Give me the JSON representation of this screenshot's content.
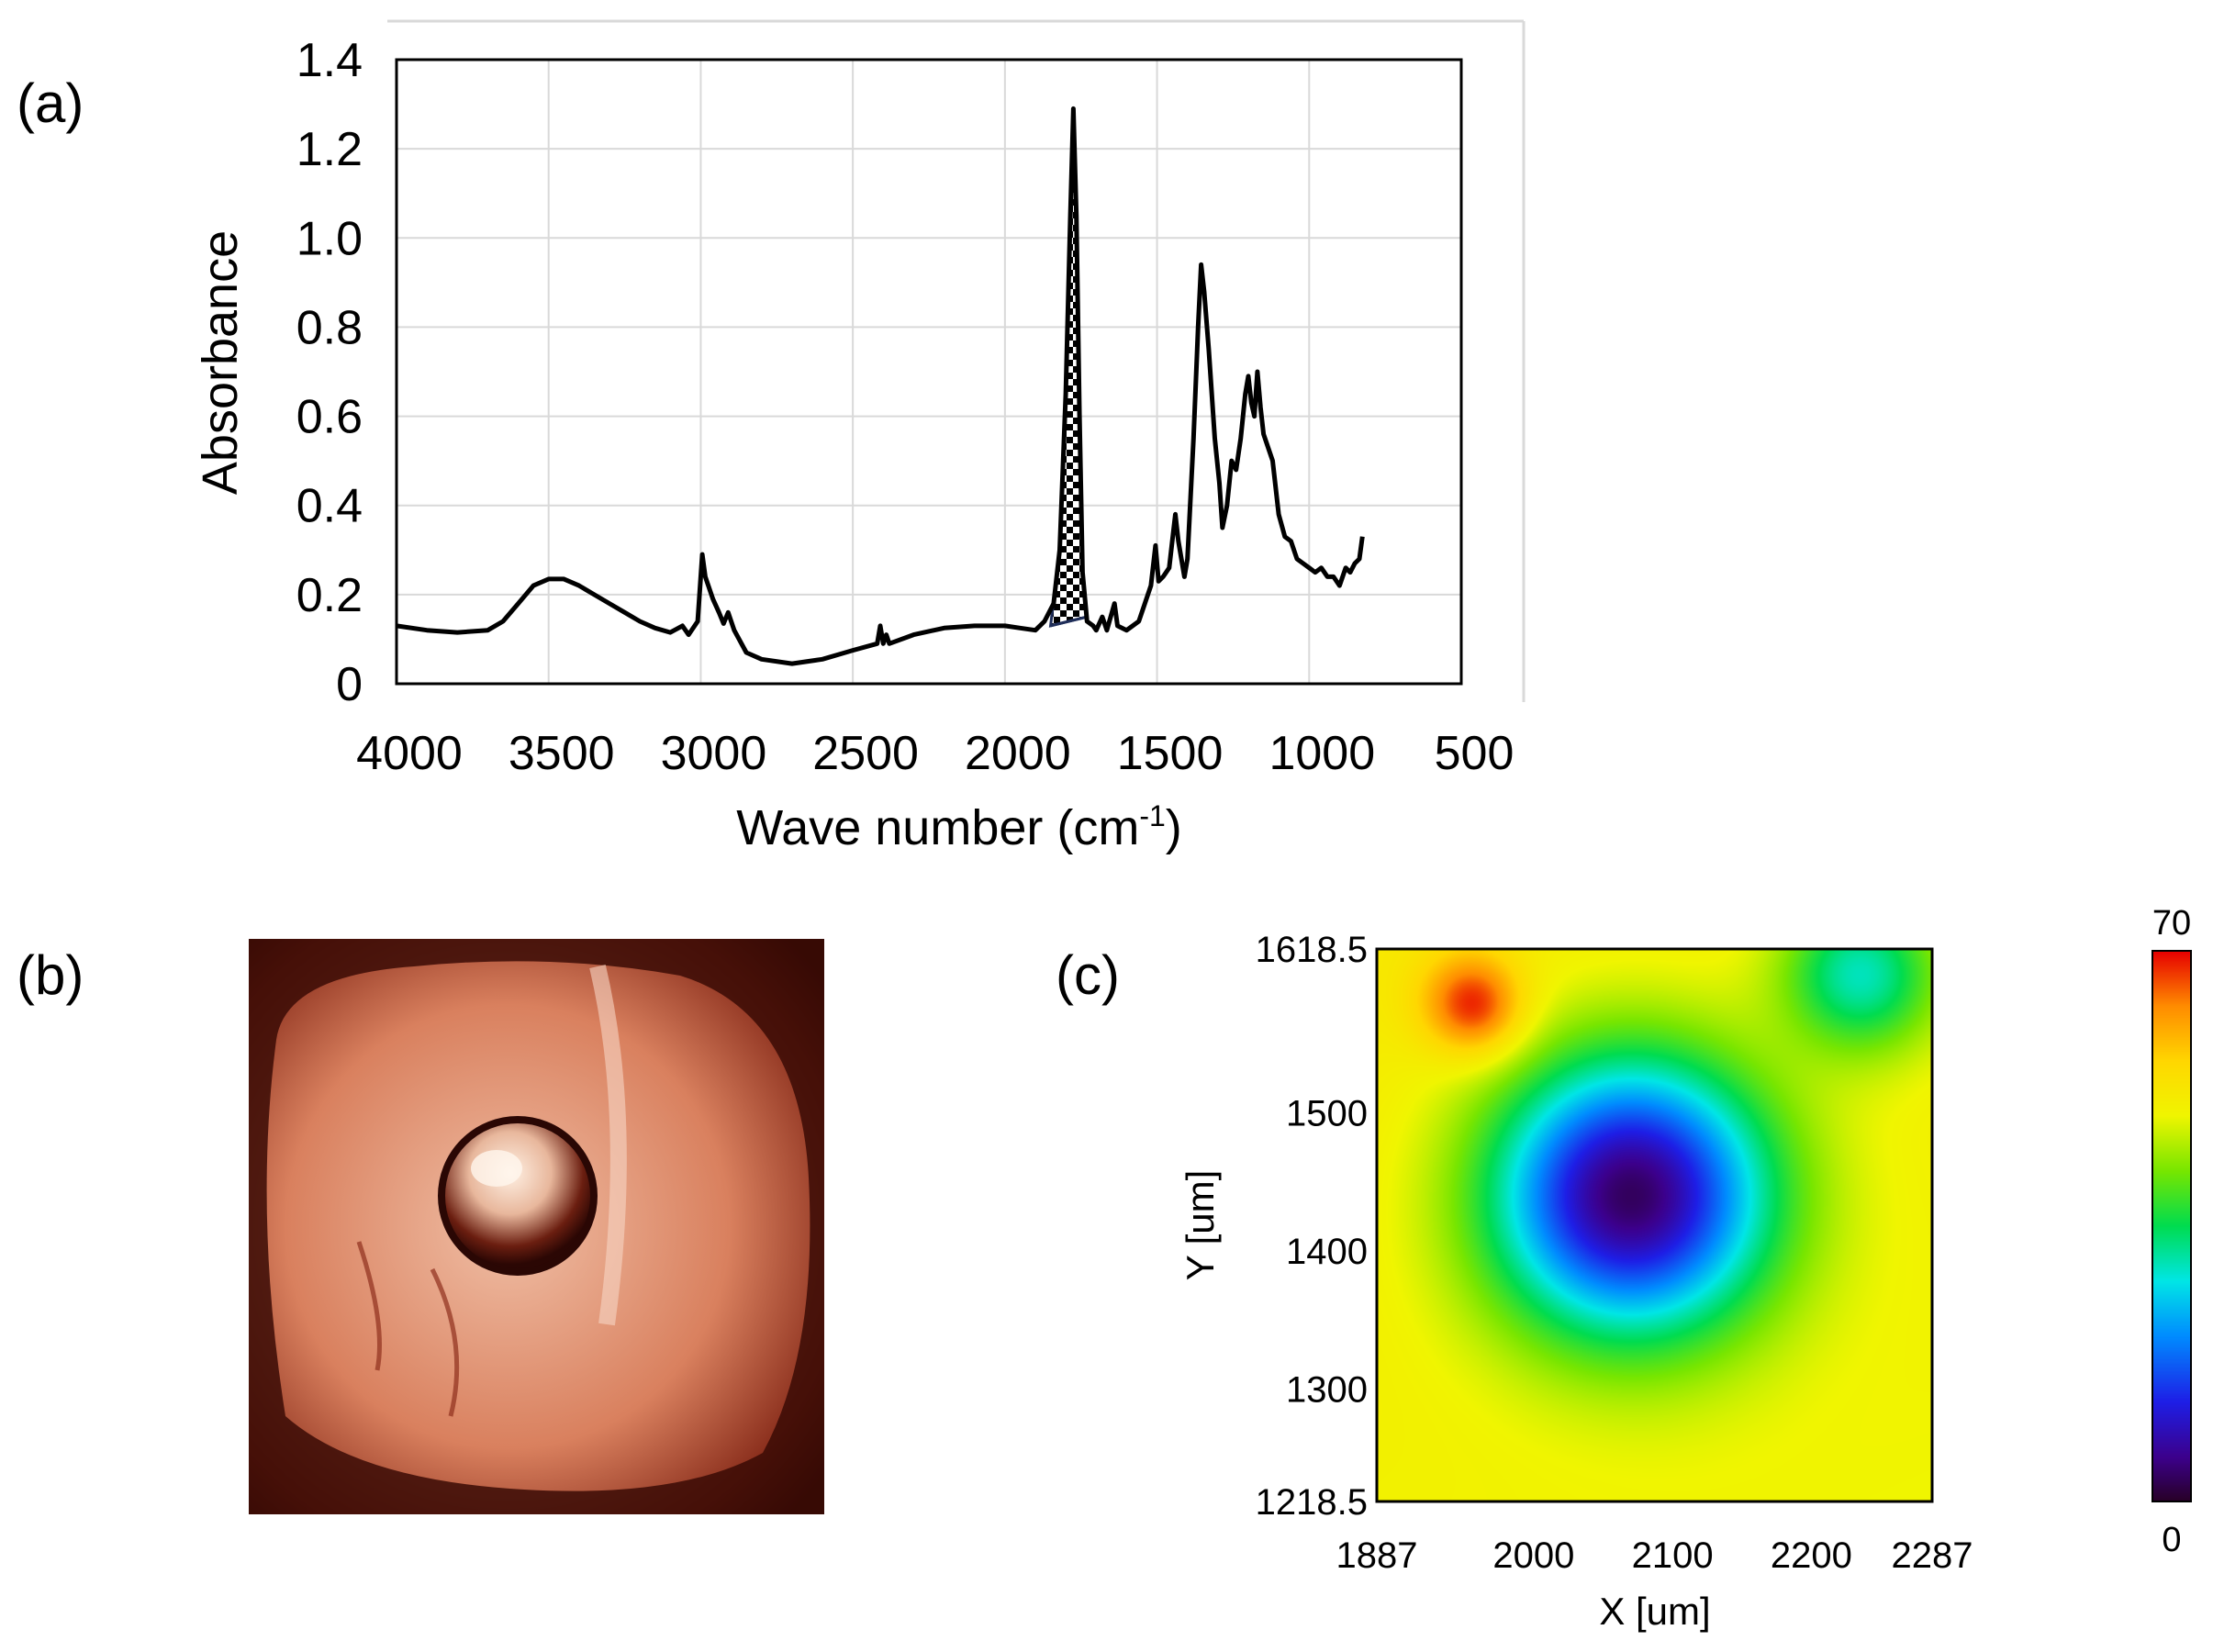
{
  "panels": {
    "a": "(a)",
    "b": "(b)",
    "c": "(c)"
  },
  "chart_data": [
    {
      "type": "line",
      "panel": "(a)",
      "title": "",
      "xlabel": "Wave number (cm",
      "xlabel_sup": "-1",
      "xlabel_end": ")",
      "ylabel": "Absorbance",
      "xlim": [
        4000,
        500
      ],
      "ylim": [
        0,
        1.4
      ],
      "xticks": [
        "4000",
        "3500",
        "3000",
        "2500",
        "2000",
        "1500",
        "1000",
        "500"
      ],
      "xtick_values": [
        4000,
        3500,
        3000,
        2500,
        2000,
        1500,
        1000,
        500
      ],
      "yticks": [
        "0",
        "0.2",
        "0.4",
        "0.6",
        "0.8",
        "1.0",
        "1.2",
        "1.4"
      ],
      "ytick_values": [
        0,
        0.2,
        0.4,
        0.6,
        0.8,
        1.0,
        1.2,
        1.4
      ],
      "grid": true,
      "series": [
        {
          "name": "spectrum",
          "color": "#000000",
          "points": [
            [
              4000,
              0.13
            ],
            [
              3900,
              0.12
            ],
            [
              3800,
              0.115
            ],
            [
              3700,
              0.12
            ],
            [
              3650,
              0.14
            ],
            [
              3600,
              0.18
            ],
            [
              3550,
              0.22
            ],
            [
              3500,
              0.235
            ],
            [
              3450,
              0.235
            ],
            [
              3400,
              0.22
            ],
            [
              3350,
              0.2
            ],
            [
              3300,
              0.18
            ],
            [
              3250,
              0.16
            ],
            [
              3200,
              0.14
            ],
            [
              3150,
              0.125
            ],
            [
              3100,
              0.115
            ],
            [
              3060,
              0.13
            ],
            [
              3040,
              0.11
            ],
            [
              3010,
              0.14
            ],
            [
              2995,
              0.29
            ],
            [
              2985,
              0.24
            ],
            [
              2960,
              0.19
            ],
            [
              2940,
              0.16
            ],
            [
              2925,
              0.135
            ],
            [
              2910,
              0.16
            ],
            [
              2890,
              0.12
            ],
            [
              2850,
              0.07
            ],
            [
              2800,
              0.055
            ],
            [
              2700,
              0.045
            ],
            [
              2600,
              0.055
            ],
            [
              2500,
              0.075
            ],
            [
              2420,
              0.09
            ],
            [
              2410,
              0.13
            ],
            [
              2400,
              0.09
            ],
            [
              2390,
              0.11
            ],
            [
              2380,
              0.09
            ],
            [
              2300,
              0.11
            ],
            [
              2200,
              0.125
            ],
            [
              2100,
              0.13
            ],
            [
              2000,
              0.13
            ],
            [
              1950,
              0.125
            ],
            [
              1900,
              0.12
            ],
            [
              1870,
              0.14
            ],
            [
              1840,
              0.18
            ],
            [
              1820,
              0.3
            ],
            [
              1800,
              0.65
            ],
            [
              1785,
              1.05
            ],
            [
              1775,
              1.29
            ],
            [
              1765,
              1.05
            ],
            [
              1755,
              0.6
            ],
            [
              1745,
              0.25
            ],
            [
              1730,
              0.14
            ],
            [
              1710,
              0.13
            ],
            [
              1700,
              0.12
            ],
            [
              1680,
              0.15
            ],
            [
              1665,
              0.12
            ],
            [
              1640,
              0.18
            ],
            [
              1630,
              0.13
            ],
            [
              1600,
              0.12
            ],
            [
              1560,
              0.14
            ],
            [
              1540,
              0.18
            ],
            [
              1520,
              0.22
            ],
            [
              1505,
              0.31
            ],
            [
              1495,
              0.23
            ],
            [
              1480,
              0.24
            ],
            [
              1460,
              0.26
            ],
            [
              1440,
              0.38
            ],
            [
              1430,
              0.32
            ],
            [
              1410,
              0.24
            ],
            [
              1400,
              0.28
            ],
            [
              1380,
              0.55
            ],
            [
              1365,
              0.8
            ],
            [
              1355,
              0.94
            ],
            [
              1345,
              0.88
            ],
            [
              1330,
              0.75
            ],
            [
              1310,
              0.55
            ],
            [
              1295,
              0.45
            ],
            [
              1285,
              0.35
            ],
            [
              1270,
              0.4
            ],
            [
              1255,
              0.5
            ],
            [
              1240,
              0.48
            ],
            [
              1225,
              0.55
            ],
            [
              1210,
              0.65
            ],
            [
              1200,
              0.69
            ],
            [
              1190,
              0.63
            ],
            [
              1180,
              0.6
            ],
            [
              1170,
              0.7
            ],
            [
              1160,
              0.62
            ],
            [
              1150,
              0.56
            ],
            [
              1140,
              0.54
            ],
            [
              1120,
              0.5
            ],
            [
              1100,
              0.38
            ],
            [
              1080,
              0.33
            ],
            [
              1060,
              0.32
            ],
            [
              1040,
              0.28
            ],
            [
              1020,
              0.27
            ],
            [
              1000,
              0.26
            ],
            [
              980,
              0.25
            ],
            [
              960,
              0.26
            ],
            [
              940,
              0.24
            ],
            [
              920,
              0.24
            ],
            [
              900,
              0.22
            ],
            [
              880,
              0.26
            ],
            [
              865,
              0.25
            ],
            [
              850,
              0.27
            ],
            [
              835,
              0.28
            ],
            [
              825,
              0.33
            ]
          ]
        },
        {
          "name": "integrated-band-area",
          "color": "#1f2e5a",
          "fill": "hatched",
          "points": [
            [
              1850,
              0.13
            ],
            [
              1820,
              0.3
            ],
            [
              1800,
              0.65
            ],
            [
              1785,
              1.05
            ],
            [
              1775,
              1.29
            ],
            [
              1765,
              1.05
            ],
            [
              1755,
              0.6
            ],
            [
              1745,
              0.25
            ],
            [
              1730,
              0.15
            ]
          ],
          "baseline": [
            [
              1850,
              0.13
            ],
            [
              1730,
              0.15
            ]
          ]
        }
      ]
    },
    {
      "type": "heatmap",
      "panel": "(c)",
      "xlabel": "X [um]",
      "ylabel": "Y [um]",
      "xlim": [
        1887,
        2287
      ],
      "ylim": [
        1218.5,
        1618.5
      ],
      "xticks": [
        "1887",
        "2000",
        "2100",
        "2200",
        "2287"
      ],
      "xtick_values": [
        1887,
        2000,
        2100,
        2200,
        2287
      ],
      "yticks": [
        "1218.5",
        "1300",
        "1400",
        "1500",
        "1618.5"
      ],
      "ytick_values": [
        1218.5,
        1300,
        1400,
        1500,
        1618.5
      ],
      "colorbar": {
        "min": 0,
        "max": 70,
        "min_label": "0",
        "max_label": "70"
      },
      "features": [
        {
          "x": 2070,
          "y": 1440,
          "value": 3,
          "spread": 70,
          "kind": "minimum"
        },
        {
          "x": 1955,
          "y": 1580,
          "value": 68,
          "spread": 25,
          "kind": "maximum"
        },
        {
          "x": 2235,
          "y": 1600,
          "value": 30,
          "spread": 40,
          "kind": "local-low"
        }
      ],
      "background_value": 50
    }
  ],
  "photo": {
    "kind": "optical-micrograph",
    "panel": "(b)"
  }
}
